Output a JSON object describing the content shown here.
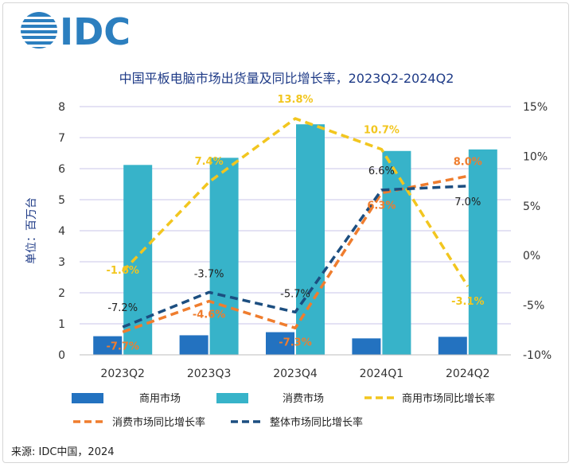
{
  "logo": {
    "text": "IDC"
  },
  "source": "来源: IDC中国，2024",
  "colors": {
    "commercial_bar": "#2372c0",
    "consumer_bar": "#37b3c9",
    "commercial_yoy": "#f2c61f",
    "consumer_yoy": "#ef7d2e",
    "total_yoy": "#1c4e80",
    "title": "#1f3b87",
    "grid": "#c9c6e8"
  },
  "chart_data": {
    "type": "bar",
    "title": "中国平板电脑市场出货量及同比增长率，2023Q2-2024Q2",
    "ylabel": "单位：百万台",
    "categories": [
      "2023Q2",
      "2023Q3",
      "2023Q4",
      "2024Q1",
      "2024Q2"
    ],
    "ylim": [
      0,
      8
    ],
    "yticks": [
      "0",
      "1",
      "2",
      "3",
      "4",
      "5",
      "6",
      "7",
      "8"
    ],
    "y2lim": [
      -10,
      15
    ],
    "y2ticks": [
      "-10%",
      "-5%",
      "0%",
      "5%",
      "10%",
      "15%"
    ],
    "grid": true,
    "legend_position": "bottom",
    "series": [
      {
        "name": "商用市场",
        "kind": "bar",
        "values": [
          0.6,
          0.63,
          0.73,
          0.53,
          0.58
        ]
      },
      {
        "name": "消费市场",
        "kind": "bar",
        "values": [
          6.12,
          6.35,
          7.43,
          6.57,
          6.62
        ]
      },
      {
        "name": "商用市场同比增长率",
        "kind": "line",
        "axis": "right",
        "values": [
          -1.6,
          7.4,
          13.8,
          10.7,
          -3.1
        ],
        "labels": [
          "-1.6%",
          "7.4%",
          "13.8%",
          "10.7%",
          "-3.1%"
        ]
      },
      {
        "name": "消费市场同比增长率",
        "kind": "line",
        "axis": "right",
        "values": [
          -7.7,
          -4.6,
          -7.3,
          6.3,
          8.0
        ],
        "labels": [
          "-7.7%",
          "-4.6%",
          "-7.3%",
          "6.3%",
          "8.0%"
        ]
      },
      {
        "name": "整体市场同比增长率",
        "kind": "line",
        "axis": "right",
        "values": [
          -7.2,
          -3.7,
          -5.7,
          6.6,
          7.0
        ],
        "labels": [
          "-7.2%",
          "-3.7%",
          "-5.7%",
          "6.6%",
          "7.0%"
        ]
      }
    ]
  }
}
